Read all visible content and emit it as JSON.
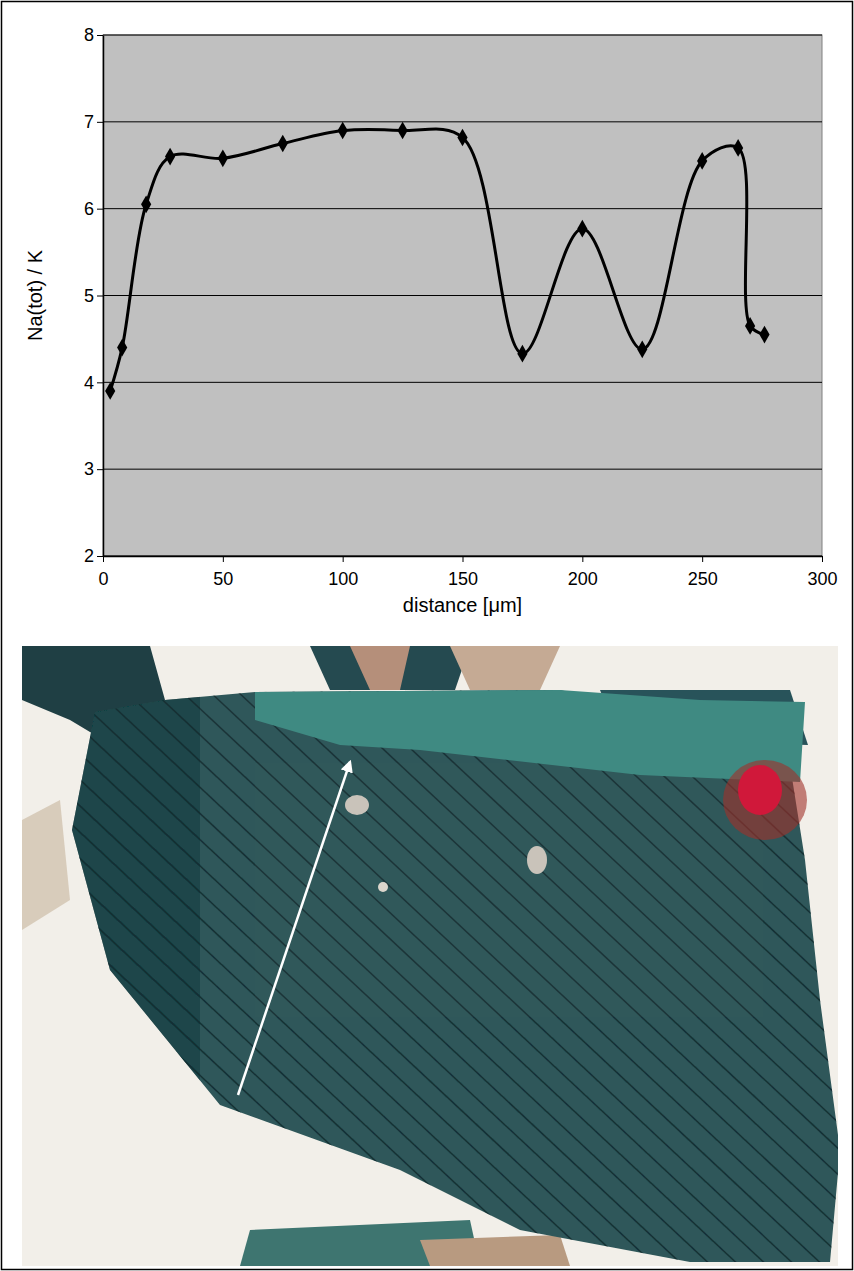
{
  "chart_data": {
    "type": "line",
    "x_label": "distance [μm]",
    "y_label": "Na(tot) / K",
    "x": [
      3,
      8,
      18,
      28,
      50,
      75,
      100,
      125,
      150,
      175,
      200,
      225,
      250,
      265,
      270,
      276
    ],
    "values": [
      3.9,
      4.4,
      6.05,
      6.6,
      6.58,
      6.75,
      6.9,
      6.9,
      6.82,
      4.33,
      5.77,
      4.38,
      6.55,
      6.7,
      4.65,
      4.55
    ],
    "color": "#000000",
    "marker": "diamond",
    "line_style": "solid",
    "xlim": [
      0,
      300
    ],
    "xticks": [
      0,
      50,
      100,
      150,
      200,
      250,
      300
    ],
    "ylim": [
      2,
      8
    ],
    "yticks": [
      2,
      3,
      4,
      5,
      6,
      7,
      8
    ],
    "grid": true
  }
}
